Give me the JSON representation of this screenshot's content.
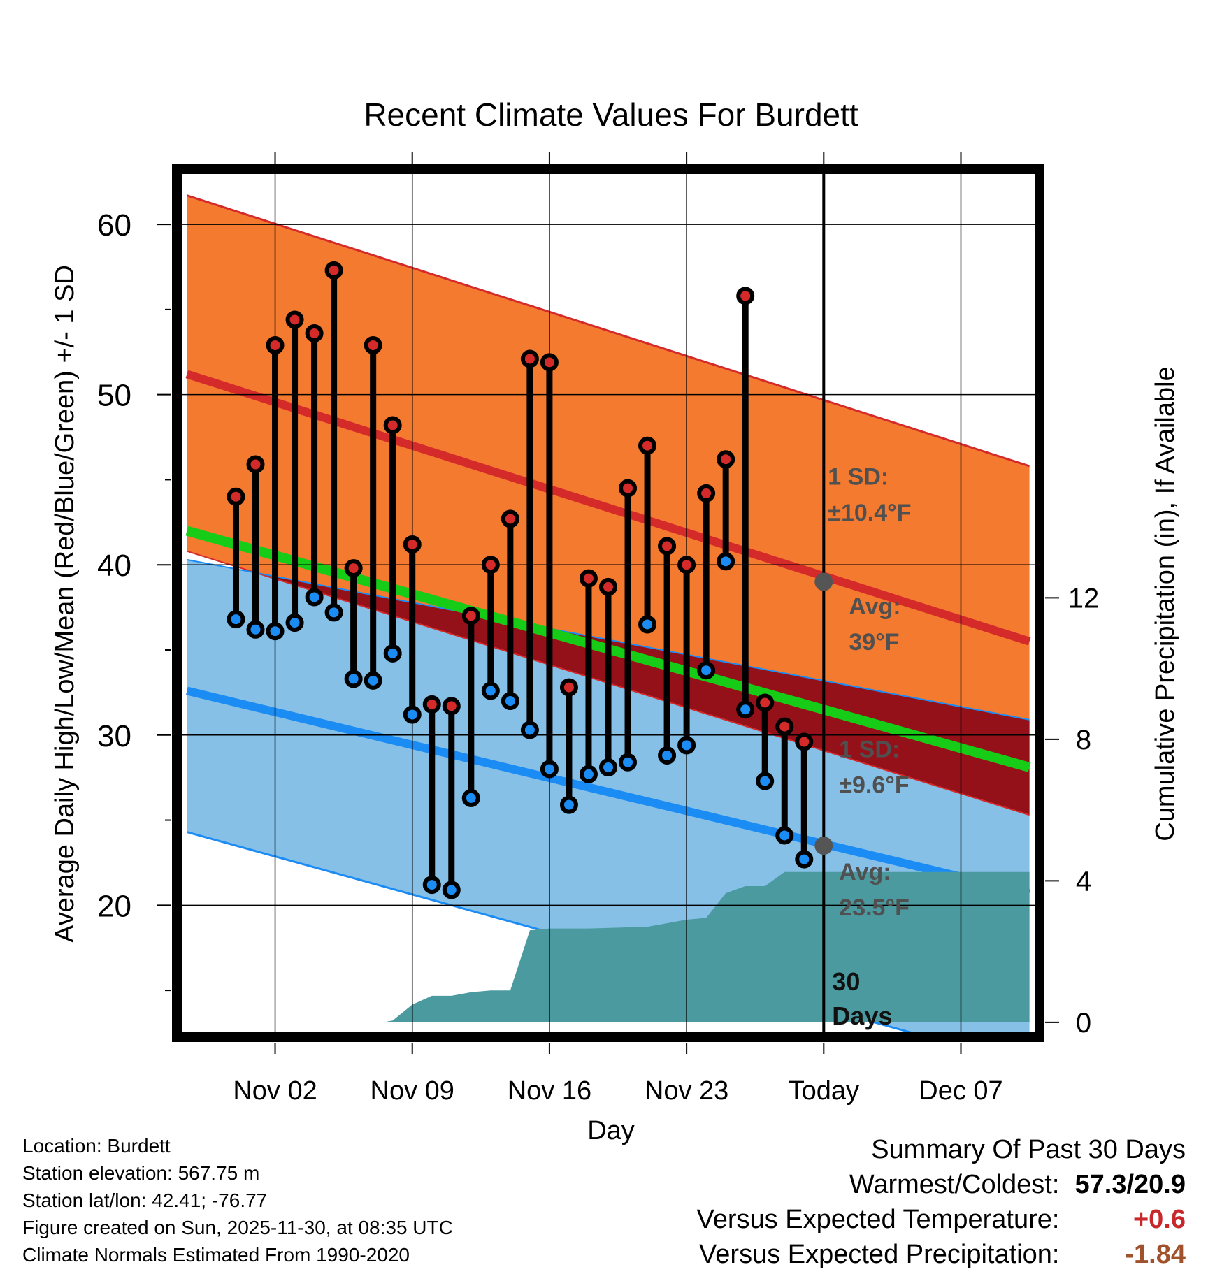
{
  "chart_data": {
    "type": "line",
    "title": "Recent Climate Values For Burdett",
    "xlabel": "Day",
    "ylabel": "Average Daily High/Low/Mean (Red/Blue/Green) +/- 1 SD",
    "y2label": "Cumulative Precipitation (in), If Available",
    "xlim": [
      -2.8,
      40.8
    ],
    "ylim": [
      12.5,
      63
    ],
    "y2lim": [
      -0.3,
      24
    ],
    "today_index": 30,
    "x_ticks": [
      {
        "x": 2,
        "label": "Nov 02"
      },
      {
        "x": 9,
        "label": "Nov 09"
      },
      {
        "x": 16,
        "label": "Nov 16"
      },
      {
        "x": 23,
        "label": "Nov 23"
      },
      {
        "x": 30,
        "label": "Today"
      },
      {
        "x": 37,
        "label": "Dec 07"
      }
    ],
    "y_ticks": [
      20,
      30,
      40,
      50,
      60
    ],
    "y2_ticks": [
      0,
      4,
      8,
      12
    ],
    "normals": {
      "x": [
        -2.5,
        40.5
      ],
      "high_avg": [
        51.2,
        35.5
      ],
      "high_upper": [
        61.7,
        45.8
      ],
      "high_lower": [
        40.8,
        25.3
      ],
      "low_avg": [
        32.6,
        20.7
      ],
      "low_upper": [
        40.3,
        30.9
      ],
      "low_lower": [
        24.3,
        10.6
      ],
      "mean_avg": [
        42.0,
        28.1
      ]
    },
    "observed": {
      "x": [
        0,
        1,
        2,
        3,
        4,
        5,
        6,
        7,
        8,
        9,
        10,
        11,
        12,
        13,
        14,
        15,
        16,
        17,
        18,
        19,
        20,
        21,
        22,
        23,
        24,
        25,
        26,
        27,
        28,
        29
      ],
      "high": [
        44.0,
        45.9,
        52.9,
        54.4,
        53.6,
        57.3,
        39.8,
        52.9,
        48.2,
        41.2,
        31.8,
        31.7,
        37.0,
        40.0,
        42.7,
        52.1,
        51.9,
        32.8,
        39.2,
        38.7,
        44.5,
        47.0,
        41.1,
        40.0,
        44.2,
        46.2,
        55.8,
        31.9,
        30.5,
        29.6
      ],
      "low": [
        36.8,
        36.2,
        36.1,
        36.6,
        38.1,
        37.2,
        33.3,
        33.2,
        34.8,
        31.2,
        21.2,
        20.9,
        26.3,
        32.6,
        32.0,
        30.3,
        28.0,
        25.9,
        27.7,
        28.1,
        28.4,
        36.5,
        28.8,
        29.4,
        33.8,
        40.2,
        31.5,
        27.3,
        24.1,
        22.7
      ]
    },
    "precip": {
      "x": [
        -2.5,
        5.0,
        6.2,
        7.5,
        8.0,
        9.0,
        10.0,
        11.0,
        12.0,
        13.0,
        14.0,
        15.0,
        16.0,
        17.0,
        18.0,
        21.0,
        22.0,
        23.0,
        24.0,
        25.0,
        26.0,
        27.0,
        28.0,
        29.0,
        30.0,
        40.5
      ],
      "values": [
        0,
        0,
        0,
        0,
        0.05,
        0.5,
        0.75,
        0.75,
        0.85,
        0.9,
        0.9,
        2.6,
        2.65,
        2.65,
        2.65,
        2.7,
        2.8,
        2.9,
        2.95,
        3.65,
        3.85,
        3.85,
        4.25,
        4.25,
        4.25,
        4.25
      ]
    },
    "annotations": {
      "high_sd_title": "1 SD:",
      "high_sd_value": "±10.4°F",
      "high_avg_title": "Avg:",
      "high_avg_value": "39°F",
      "high_avg_marker": 39.0,
      "low_sd_title": "1 SD:",
      "low_sd_value": "±9.6°F",
      "low_avg_title": "Avg:",
      "low_avg_value": "23.5°F",
      "low_avg_marker": 23.5,
      "precip_label_line1": "30",
      "precip_label_line2": "Days"
    },
    "colors": {
      "high_band": "#f47a2f",
      "low_band": "#86c0e6",
      "overlap_band": "#95111a",
      "high_line": "#d52a2a",
      "low_line": "#1c8cf5",
      "mean_line": "#17cc17",
      "precip_fill": "#4a9aa0",
      "high_dot": "#d52a2a",
      "low_dot": "#1c8cf5",
      "annotation_text": "#505050",
      "marker": "#555555"
    }
  },
  "footer": {
    "location": "Location: Burdett",
    "elevation": "Station elevation: 567.75 m",
    "latlon": "Station lat/lon: 42.41; -76.77",
    "created": "Figure created on Sun, 2025-11-30, at 08:35 UTC",
    "normals": "Climate Normals Estimated From 1990-2020"
  },
  "summary": {
    "title": "Summary Of Past 30 Days",
    "warmest_label": "Warmest/Coldest:",
    "warmest_value": "57.3/20.9",
    "temp_label": "Versus Expected Temperature:",
    "temp_value": "+0.6",
    "temp_color": "#c8282c",
    "precip_label": "Versus Expected Precipitation:",
    "precip_value": "-1.84",
    "precip_color": "#a0522d"
  }
}
